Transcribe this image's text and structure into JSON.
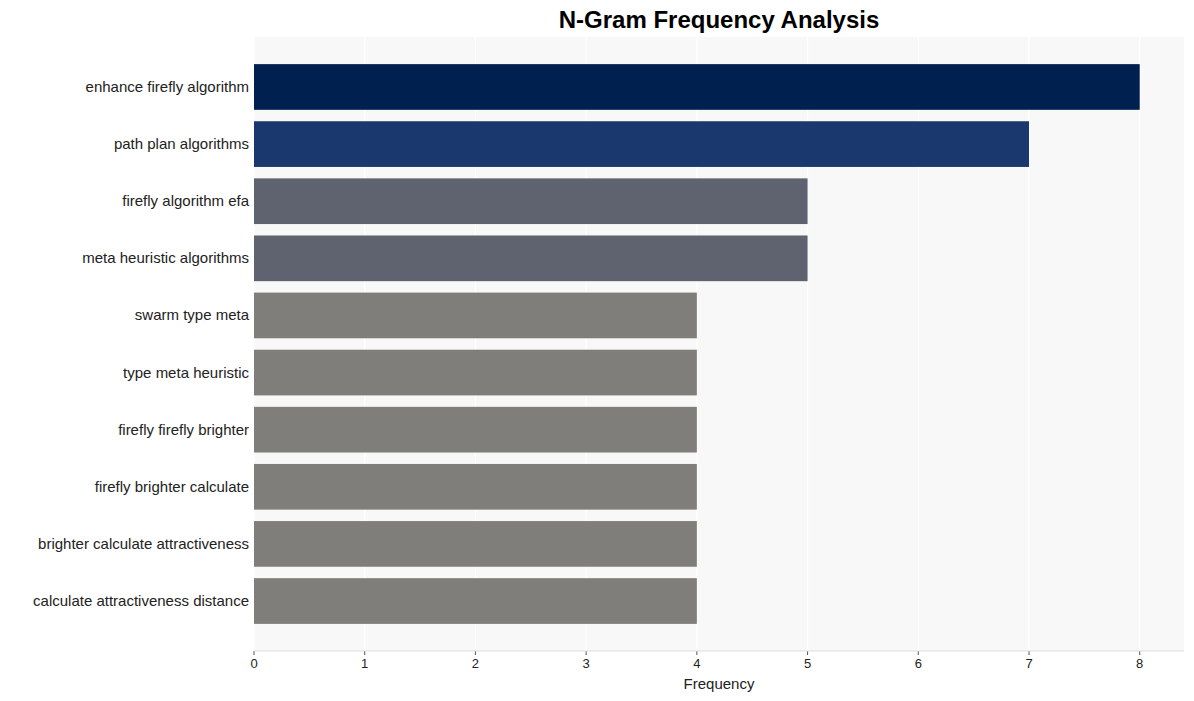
{
  "chart_data": {
    "type": "bar",
    "orientation": "horizontal",
    "title": "N-Gram Frequency Analysis",
    "x_label": "Frequency",
    "categories": [
      "enhance firefly algorithm",
      "path plan algorithms",
      "firefly algorithm efa",
      "meta heuristic algorithms",
      "swarm type meta",
      "type meta heuristic",
      "firefly firefly brighter",
      "firefly brighter calculate",
      "brighter calculate attractiveness",
      "calculate attractiveness distance"
    ],
    "values": [
      8,
      7,
      5,
      5,
      4,
      4,
      4,
      4,
      4,
      4
    ],
    "colors": [
      "#00214f",
      "#1a376e",
      "#5f6370",
      "#5f6370",
      "#7f7e7a",
      "#7f7e7a",
      "#7f7e7a",
      "#7f7e7a",
      "#7f7e7a",
      "#7f7e7a"
    ],
    "xlim": [
      0,
      8.4
    ],
    "xticks": [
      0,
      1,
      2,
      3,
      4,
      5,
      6,
      7,
      8
    ],
    "grid": true
  }
}
